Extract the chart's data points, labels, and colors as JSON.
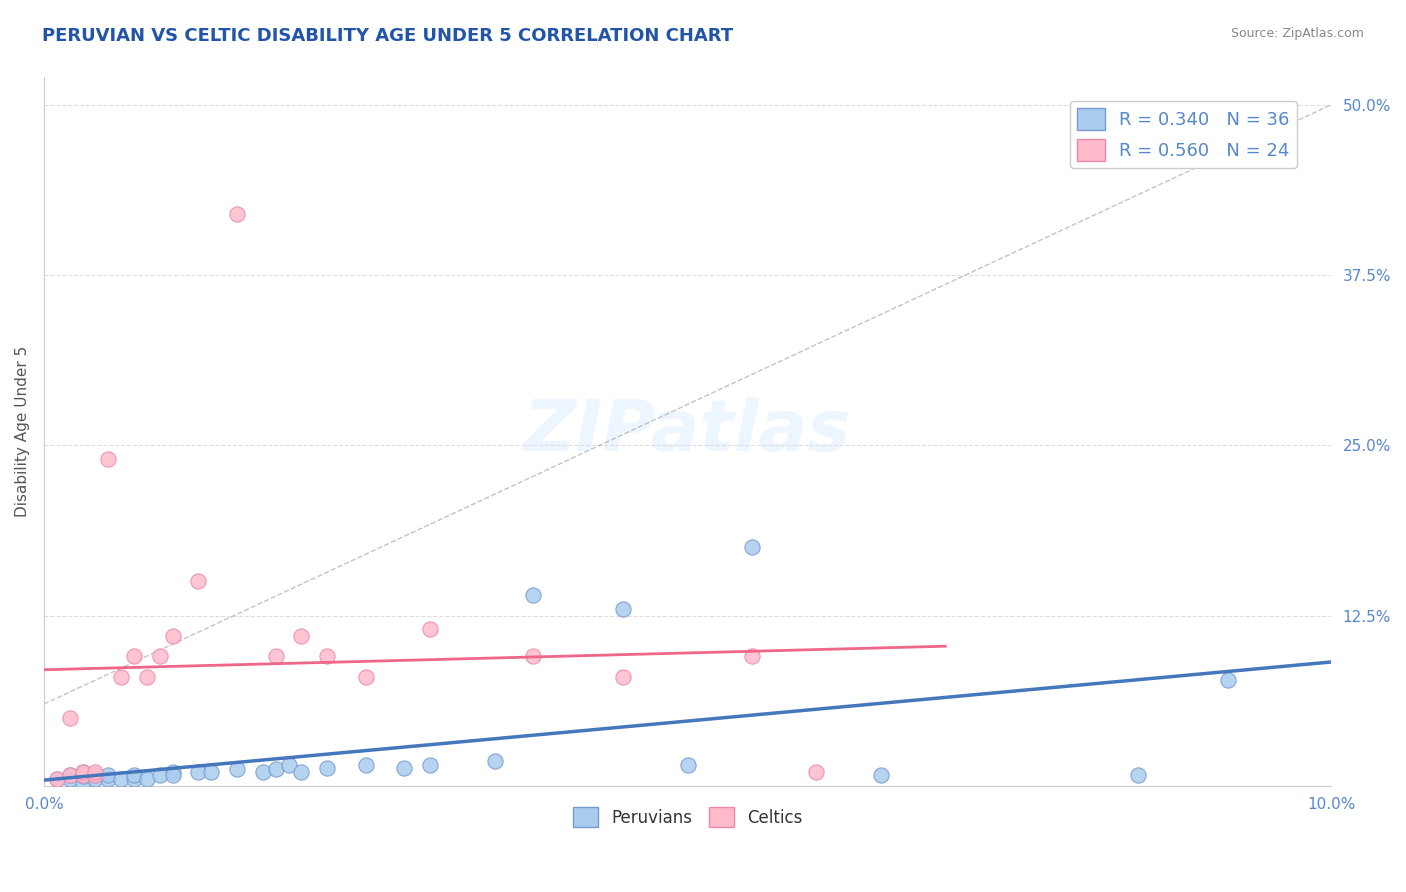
{
  "title": "PERUVIAN VS CELTIC DISABILITY AGE UNDER 5 CORRELATION CHART",
  "source": "Source: ZipAtlas.com",
  "xlabel": "",
  "ylabel": "Disability Age Under 5",
  "xlim": [
    0.0,
    0.1
  ],
  "ylim": [
    0.0,
    0.52
  ],
  "yticks": [
    0.0,
    0.125,
    0.25,
    0.375,
    0.5
  ],
  "ytick_labels": [
    "",
    "12.5%",
    "25.0%",
    "37.5%",
    "50.0%"
  ],
  "xticks": [
    0.0,
    0.02,
    0.04,
    0.06,
    0.08,
    0.1
  ],
  "xtick_labels": [
    "0.0%",
    "",
    "",
    "",
    "",
    "10.0%"
  ],
  "background_color": "#ffffff",
  "grid_color": "#dddddd",
  "title_color": "#2255aa",
  "axis_color": "#aaaaaa",
  "peruvian_color": "#aaccee",
  "peruvian_edge_color": "#7799cc",
  "peruvian_line_color": "#4477bb",
  "celtic_color": "#ffbbcc",
  "celtic_edge_color": "#ee88aa",
  "celtic_line_color": "#ee6688",
  "legend_r1": "R = 0.340",
  "legend_n1": "N = 36",
  "legend_r2": "R = 0.560",
  "legend_n2": "N = 24",
  "R_peruvian": 0.34,
  "N_peruvian": 36,
  "R_celtic": 0.56,
  "N_celtic": 24,
  "watermark": "ZIPatlas",
  "peruvian_x": [
    0.001,
    0.002,
    0.002,
    0.003,
    0.003,
    0.003,
    0.004,
    0.004,
    0.005,
    0.005,
    0.006,
    0.007,
    0.007,
    0.008,
    0.009,
    0.01,
    0.01,
    0.012,
    0.013,
    0.015,
    0.017,
    0.018,
    0.019,
    0.02,
    0.022,
    0.025,
    0.028,
    0.03,
    0.035,
    0.038,
    0.045,
    0.05,
    0.055,
    0.065,
    0.085,
    0.092
  ],
  "peruvian_y": [
    0.005,
    0.005,
    0.008,
    0.003,
    0.007,
    0.01,
    0.005,
    0.008,
    0.005,
    0.008,
    0.005,
    0.005,
    0.008,
    0.005,
    0.008,
    0.01,
    0.008,
    0.01,
    0.01,
    0.012,
    0.01,
    0.012,
    0.015,
    0.01,
    0.013,
    0.015,
    0.013,
    0.015,
    0.018,
    0.14,
    0.13,
    0.015,
    0.175,
    0.008,
    0.008,
    0.078
  ],
  "celtic_x": [
    0.001,
    0.002,
    0.002,
    0.003,
    0.003,
    0.004,
    0.004,
    0.005,
    0.006,
    0.007,
    0.008,
    0.009,
    0.01,
    0.012,
    0.015,
    0.018,
    0.02,
    0.022,
    0.025,
    0.03,
    0.038,
    0.045,
    0.055,
    0.06
  ],
  "celtic_y": [
    0.005,
    0.008,
    0.05,
    0.008,
    0.01,
    0.008,
    0.01,
    0.24,
    0.08,
    0.095,
    0.08,
    0.095,
    0.11,
    0.15,
    0.42,
    0.095,
    0.11,
    0.095,
    0.08,
    0.115,
    0.095,
    0.08,
    0.095,
    0.01
  ]
}
